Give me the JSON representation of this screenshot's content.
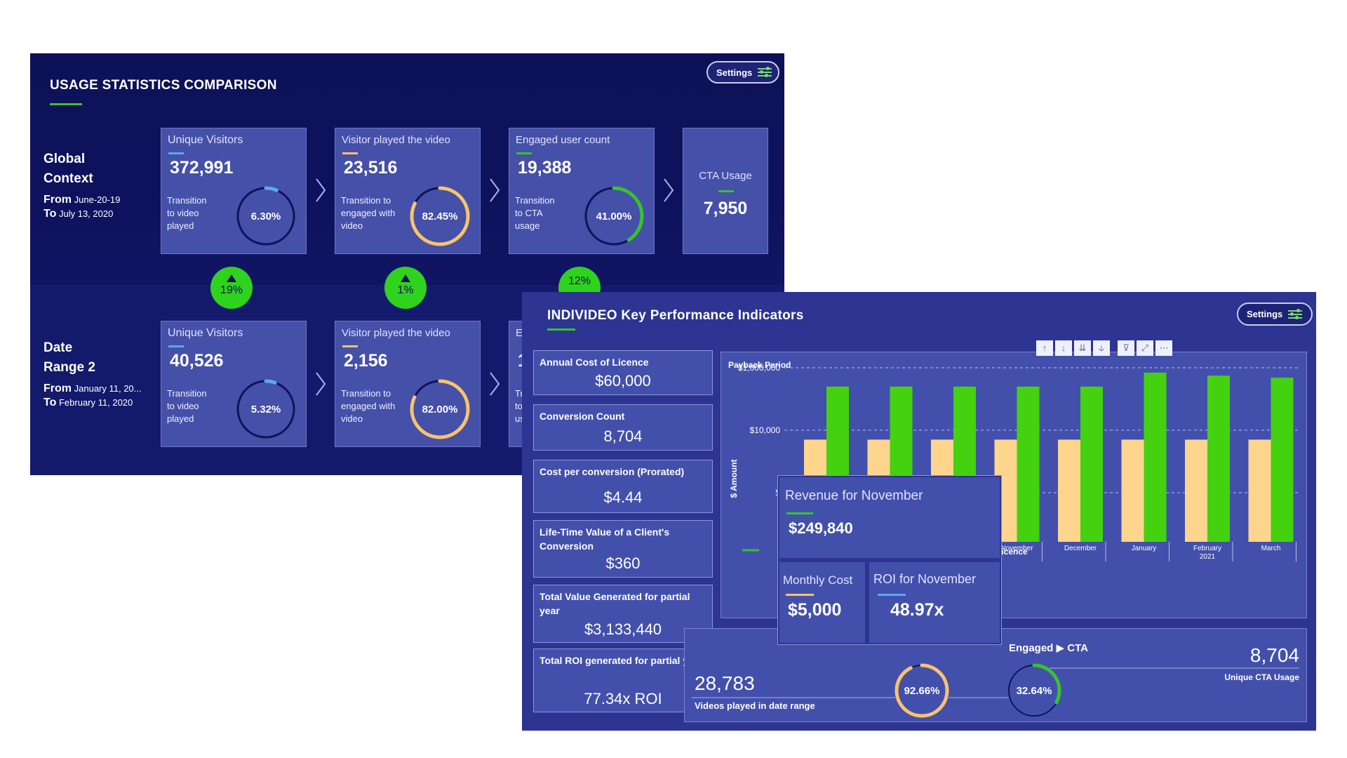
{
  "usage_panel": {
    "title": "USAGE STATISTICS COMPARISON",
    "settings_label": "Settings",
    "global": {
      "label_line1": "Global",
      "label_line2": "Context",
      "from_label": "From",
      "from_date": "June-20-19",
      "to_label": "To",
      "to_date": "July 13, 2020",
      "cards": [
        {
          "label": "Unique Visitors",
          "value": "372,991",
          "sub1": "Transition",
          "sub2": "to video",
          "sub3": "played",
          "pct": "6.30%",
          "pct_value": 6.3
        },
        {
          "label": "Visitor played the video",
          "value": "23,516",
          "sub1": "Transition to",
          "sub2": "engaged with",
          "sub3": "video",
          "pct": "82.45%",
          "pct_value": 82.45
        },
        {
          "label": "Engaged user count",
          "value": "19,388",
          "sub1": "Transition",
          "sub2": "to CTA",
          "sub3": "usage",
          "pct": "41.00%",
          "pct_value": 41.0
        },
        {
          "label": "CTA Usage",
          "value": "7,950"
        }
      ]
    },
    "deltas": [
      "19%",
      "1%",
      "12%"
    ],
    "range2": {
      "label_line1": "Date",
      "label_line2": "Range 2",
      "from_label": "From",
      "from_date": "January 11, 20...",
      "to_label": "To",
      "to_date": "February 11, 2020",
      "cards": [
        {
          "label": "Unique Visitors",
          "value": "40,526",
          "sub1": "Transition",
          "sub2": "to video",
          "sub3": "played",
          "pct": "5.32%",
          "pct_value": 5.32
        },
        {
          "label": "Visitor played the video",
          "value": "2,156",
          "sub1": "Transition to",
          "sub2": "engaged with",
          "sub3": "video",
          "pct": "82.00%",
          "pct_value": 82.0
        },
        {
          "label": "En",
          "value": "1",
          "sub1": "Tr",
          "sub2": "to",
          "sub3": "us"
        }
      ]
    }
  },
  "kpi_panel": {
    "title": "INDIVIDEO Key Performance Indicators",
    "settings_label": "Settings",
    "cards": [
      {
        "label": "Annual Cost of Licence",
        "value": "$60,000"
      },
      {
        "label": "Conversion Count",
        "value": "8,704"
      },
      {
        "label": "Cost per conversion (Prorated)",
        "value": "$4.44"
      },
      {
        "label": "Life-Time Value of a Client's Conversion",
        "value": "$360"
      },
      {
        "label": "Total Value Generated for partial year",
        "value": "$3,133,440"
      },
      {
        "label": "Total ROI generated for partial year",
        "value": "77.34x ROI"
      }
    ],
    "toolbar_icons": [
      "arrow-up-icon",
      "arrow-down-icon",
      "expand-level-icon",
      "hierarchy-icon",
      "filter-icon",
      "focus-mode-icon",
      "more-options-icon"
    ],
    "legend_partial": "Licence",
    "tooltip": {
      "revenue_label": "Revenue for November",
      "revenue_value": "$249,840",
      "cost_label": "Monthly Cost",
      "cost_value": "$5,000",
      "roi_label": "ROI for November",
      "roi_value": "48.97x"
    },
    "funnel": {
      "videos_value": "28,783",
      "videos_label": "Videos played in date range",
      "engaged_title": "Engaged",
      "cta_title": "CTA",
      "pct1": "92.66%",
      "pct1_value": 92.66,
      "pct2": "32.64%",
      "pct2_value": 32.64,
      "cta_value": "8,704",
      "cta_label": "Unique CTA Usage"
    }
  },
  "chart_data": {
    "type": "bar",
    "title": "Payback Period",
    "ylabel": "$ Amount",
    "y_scale": "log",
    "y_tick_labels": [
      "$1,000,000",
      "$10,000",
      "$"
    ],
    "ylim": [
      100,
      1000000
    ],
    "categories": [
      "",
      "",
      "",
      "November",
      "December",
      "January",
      "February",
      "March"
    ],
    "category_sub": [
      "",
      "",
      "",
      "",
      "",
      "",
      "2021",
      ""
    ],
    "series": [
      {
        "name": "",
        "color": "#fdd58d",
        "values": [
          5000,
          5000,
          5000,
          5000,
          5000,
          5000,
          5000,
          5000
        ]
      },
      {
        "name": "",
        "color": "#44d10f",
        "values": [
          249840,
          249840,
          249840,
          249840,
          249840,
          700000,
          560000,
          480000
        ]
      }
    ]
  },
  "colors": {
    "accent_green": "#2fd21d",
    "ring_blue": "#5aa8f0",
    "ring_orange": "#f9c36a",
    "panel_dark": "#0d1156",
    "card_blue": "#4550a8"
  }
}
